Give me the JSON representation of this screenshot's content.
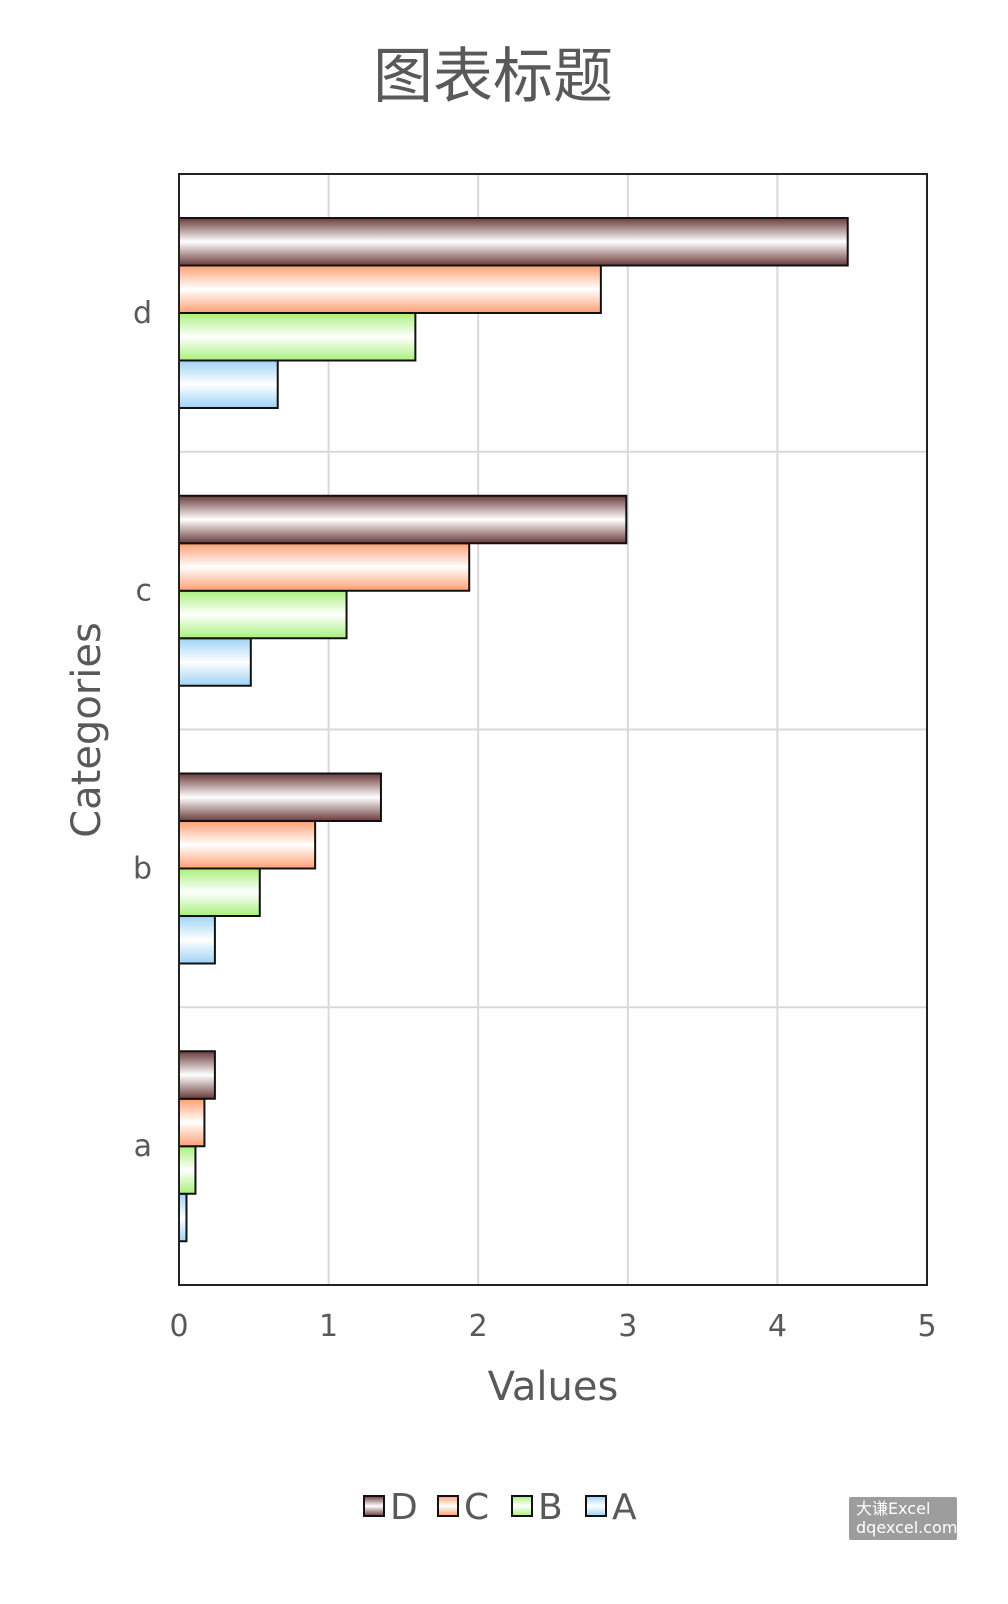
{
  "chart_data": {
    "type": "bar",
    "orientation": "horizontal",
    "title": "图表标题",
    "xlabel": "Values",
    "ylabel": "Categories",
    "categories": [
      "a",
      "b",
      "c",
      "d"
    ],
    "series": [
      {
        "name": "A",
        "values": [
          0.05,
          0.24,
          0.48,
          0.66
        ],
        "color": "#9dd3f5"
      },
      {
        "name": "B",
        "values": [
          0.11,
          0.54,
          1.12,
          1.58
        ],
        "color": "#a8f07a"
      },
      {
        "name": "C",
        "values": [
          0.17,
          0.91,
          1.94,
          2.82
        ],
        "color": "#ff9f73"
      },
      {
        "name": "D",
        "values": [
          0.24,
          1.35,
          2.99,
          4.47
        ],
        "color": "#6b3a3a"
      }
    ],
    "xlim": [
      0,
      5
    ],
    "xticks": [
      0,
      1,
      2,
      3,
      4,
      5
    ],
    "xtick_labels": [
      "0",
      "1",
      "2",
      "3",
      "4",
      "5"
    ],
    "grid": true,
    "legend": {
      "position": "bottom",
      "order": [
        "D",
        "C",
        "B",
        "A"
      ]
    }
  },
  "watermark": {
    "line1": "大谦Excel",
    "line2": "dqexcel.com"
  }
}
